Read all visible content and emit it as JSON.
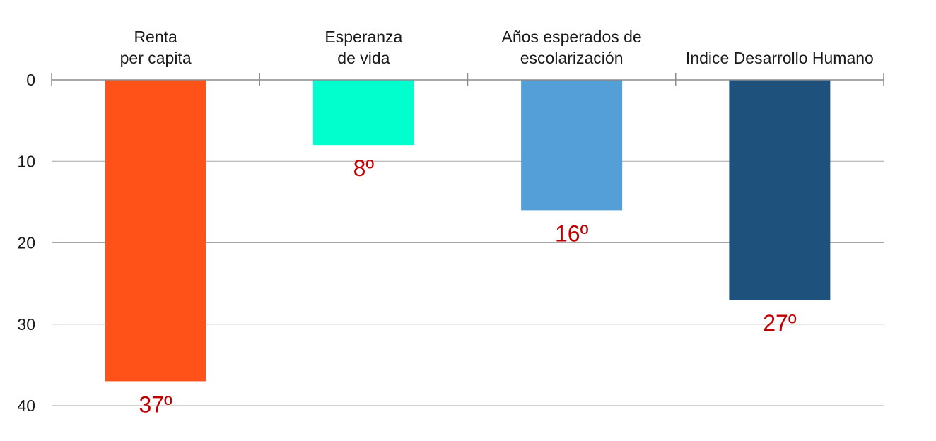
{
  "chart_data": {
    "type": "bar",
    "orientation": "vertical",
    "y_axis_inverted": true,
    "categories": [
      [
        "Renta",
        "per capita"
      ],
      [
        "Esperanza",
        "de vida"
      ],
      [
        "Años esperados de",
        "escolarización"
      ],
      [
        "Indice Desarrollo Humano"
      ]
    ],
    "values": [
      37,
      8,
      16,
      27
    ],
    "data_labels": [
      "37º",
      "8º",
      "16º",
      "27º"
    ],
    "colors": [
      "#ff5219",
      "#00ffcc",
      "#559fd8",
      "#1e527c"
    ],
    "label_color": "#c00000",
    "ylim": [
      0,
      40
    ],
    "yticks": [
      0,
      10,
      20,
      30,
      40
    ],
    "ytick_labels": [
      "0",
      "10",
      "20",
      "30",
      "40"
    ],
    "category_axis_position": "top",
    "grid": true,
    "legend": false,
    "title": "",
    "xlabel": "",
    "ylabel": ""
  }
}
